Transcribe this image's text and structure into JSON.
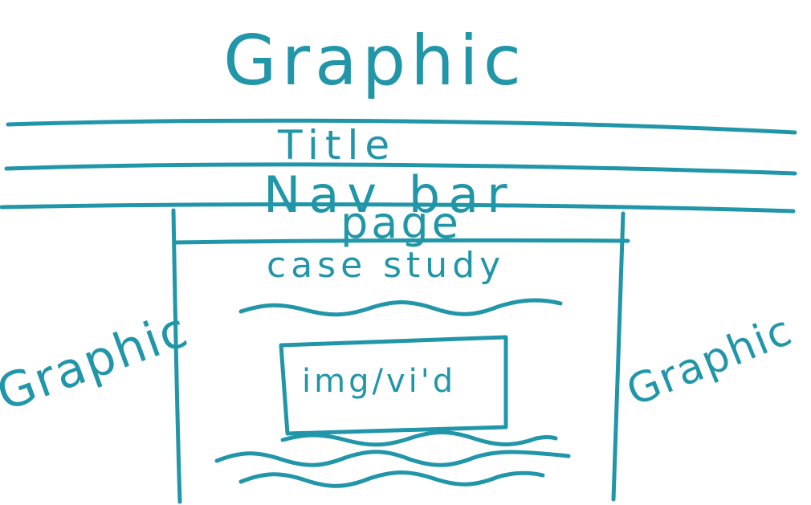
{
  "colors": {
    "ink": "#2196a8",
    "background": "#ffffff"
  },
  "labels": {
    "top_graphic": "Graphic",
    "title": "Title",
    "nav_bar": "Nav bar",
    "page": "page",
    "case_study": "case study",
    "media": "img/vi'd",
    "left_graphic": "Graphic",
    "right_graphic": "Graphic"
  }
}
